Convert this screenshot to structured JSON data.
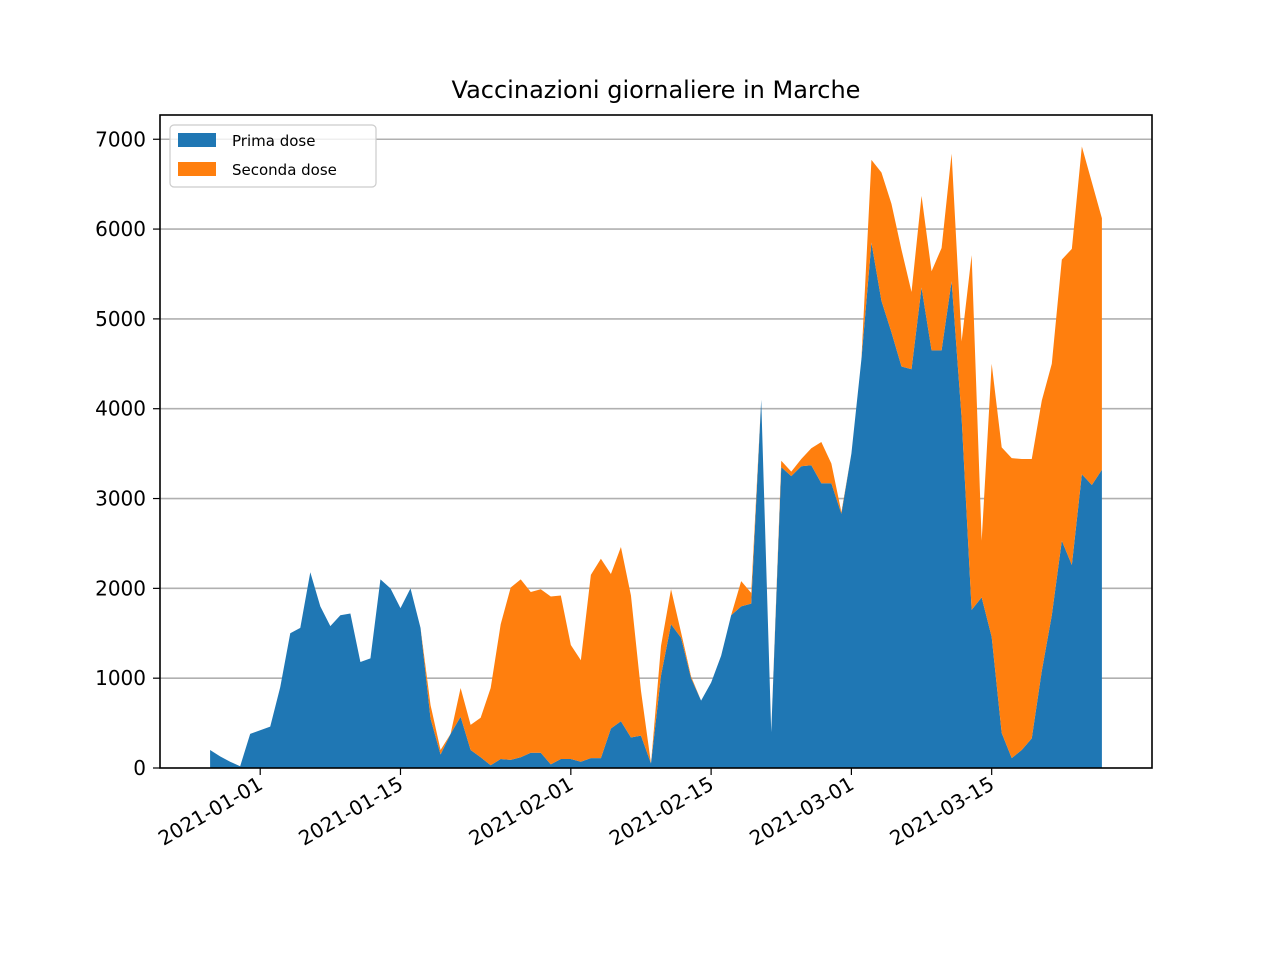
{
  "colors": {
    "prima": "#1f77b4",
    "seconda": "#ff7f0e",
    "grid": "#b0b0b0"
  },
  "chart_data": {
    "type": "area",
    "stacked": true,
    "title": "Vaccinazioni giornaliere in Marche",
    "xlabel": "",
    "ylabel": "",
    "xlim": [
      "2020-12-22",
      "2021-03-31"
    ],
    "ylim": [
      0,
      7270
    ],
    "yticks": [
      0,
      1000,
      2000,
      3000,
      4000,
      5000,
      6000,
      7000
    ],
    "xticks": [
      "2021-01-01",
      "2021-01-15",
      "2021-02-01",
      "2021-02-15",
      "2021-03-01",
      "2021-03-15"
    ],
    "grid": "y",
    "legend": "upper-left",
    "x": [
      "2020-12-27",
      "2020-12-28",
      "2020-12-29",
      "2020-12-30",
      "2020-12-31",
      "2021-01-01",
      "2021-01-02",
      "2021-01-03",
      "2021-01-04",
      "2021-01-05",
      "2021-01-06",
      "2021-01-07",
      "2021-01-08",
      "2021-01-09",
      "2021-01-10",
      "2021-01-11",
      "2021-01-12",
      "2021-01-13",
      "2021-01-14",
      "2021-01-15",
      "2021-01-16",
      "2021-01-17",
      "2021-01-18",
      "2021-01-19",
      "2021-01-20",
      "2021-01-21",
      "2021-01-22",
      "2021-01-23",
      "2021-01-24",
      "2021-01-25",
      "2021-01-26",
      "2021-01-27",
      "2021-01-28",
      "2021-01-29",
      "2021-01-30",
      "2021-01-31",
      "2021-02-01",
      "2021-02-02",
      "2021-02-03",
      "2021-02-04",
      "2021-02-05",
      "2021-02-06",
      "2021-02-07",
      "2021-02-08",
      "2021-02-09",
      "2021-02-10",
      "2021-02-11",
      "2021-02-12",
      "2021-02-13",
      "2021-02-14",
      "2021-02-15",
      "2021-02-16",
      "2021-02-17",
      "2021-02-18",
      "2021-02-19",
      "2021-02-20",
      "2021-02-21",
      "2021-02-22",
      "2021-02-23",
      "2021-02-24",
      "2021-02-25",
      "2021-02-26",
      "2021-02-27",
      "2021-02-28",
      "2021-03-01",
      "2021-03-02",
      "2021-03-03",
      "2021-03-04",
      "2021-03-05",
      "2021-03-06",
      "2021-03-07",
      "2021-03-08",
      "2021-03-09",
      "2021-03-10",
      "2021-03-11",
      "2021-03-12",
      "2021-03-13",
      "2021-03-14",
      "2021-03-15",
      "2021-03-16",
      "2021-03-17",
      "2021-03-18",
      "2021-03-19",
      "2021-03-20",
      "2021-03-21",
      "2021-03-22",
      "2021-03-23",
      "2021-03-24",
      "2021-03-25",
      "2021-03-26"
    ],
    "series": [
      {
        "name": "Prima dose",
        "values": [
          200,
          130,
          70,
          20,
          380,
          420,
          460,
          900,
          1500,
          1560,
          2180,
          1800,
          1580,
          1700,
          1720,
          1180,
          1220,
          2100,
          2000,
          1780,
          2000,
          1560,
          550,
          150,
          380,
          570,
          200,
          120,
          30,
          100,
          90,
          120,
          170,
          170,
          40,
          100,
          100,
          70,
          110,
          110,
          440,
          520,
          340,
          360,
          50,
          1030,
          1600,
          1450,
          1000,
          750,
          950,
          1250,
          1700,
          1800,
          1830,
          4100,
          400,
          3350,
          3250,
          3360,
          3370,
          3170,
          3170,
          2830,
          3500,
          4550,
          5850,
          5200,
          4850,
          4470,
          4440,
          5350,
          4650,
          4650,
          5420,
          3900,
          1760,
          1900,
          1460,
          390,
          110,
          200,
          330,
          1080,
          1700,
          2530,
          2260,
          3270,
          3150,
          3320
        ]
      },
      {
        "name": "Seconda dose",
        "values": [
          0,
          0,
          0,
          0,
          0,
          0,
          0,
          0,
          0,
          0,
          0,
          0,
          0,
          0,
          0,
          0,
          0,
          0,
          0,
          0,
          0,
          0,
          150,
          50,
          0,
          320,
          280,
          440,
          860,
          1500,
          1920,
          1980,
          1790,
          1820,
          1870,
          1820,
          1270,
          1130,
          2040,
          2220,
          1720,
          1940,
          1580,
          500,
          0,
          330,
          390,
          60,
          20,
          0,
          0,
          0,
          0,
          280,
          120,
          0,
          0,
          70,
          50,
          80,
          190,
          460,
          220,
          20,
          0,
          0,
          920,
          1430,
          1430,
          1300,
          860,
          1020,
          880,
          1140,
          1420,
          850,
          3950,
          630,
          3040,
          3180,
          3340,
          3240,
          3110,
          3010,
          2800,
          3130,
          3520,
          3650,
          3370,
          2800
        ]
      }
    ]
  }
}
